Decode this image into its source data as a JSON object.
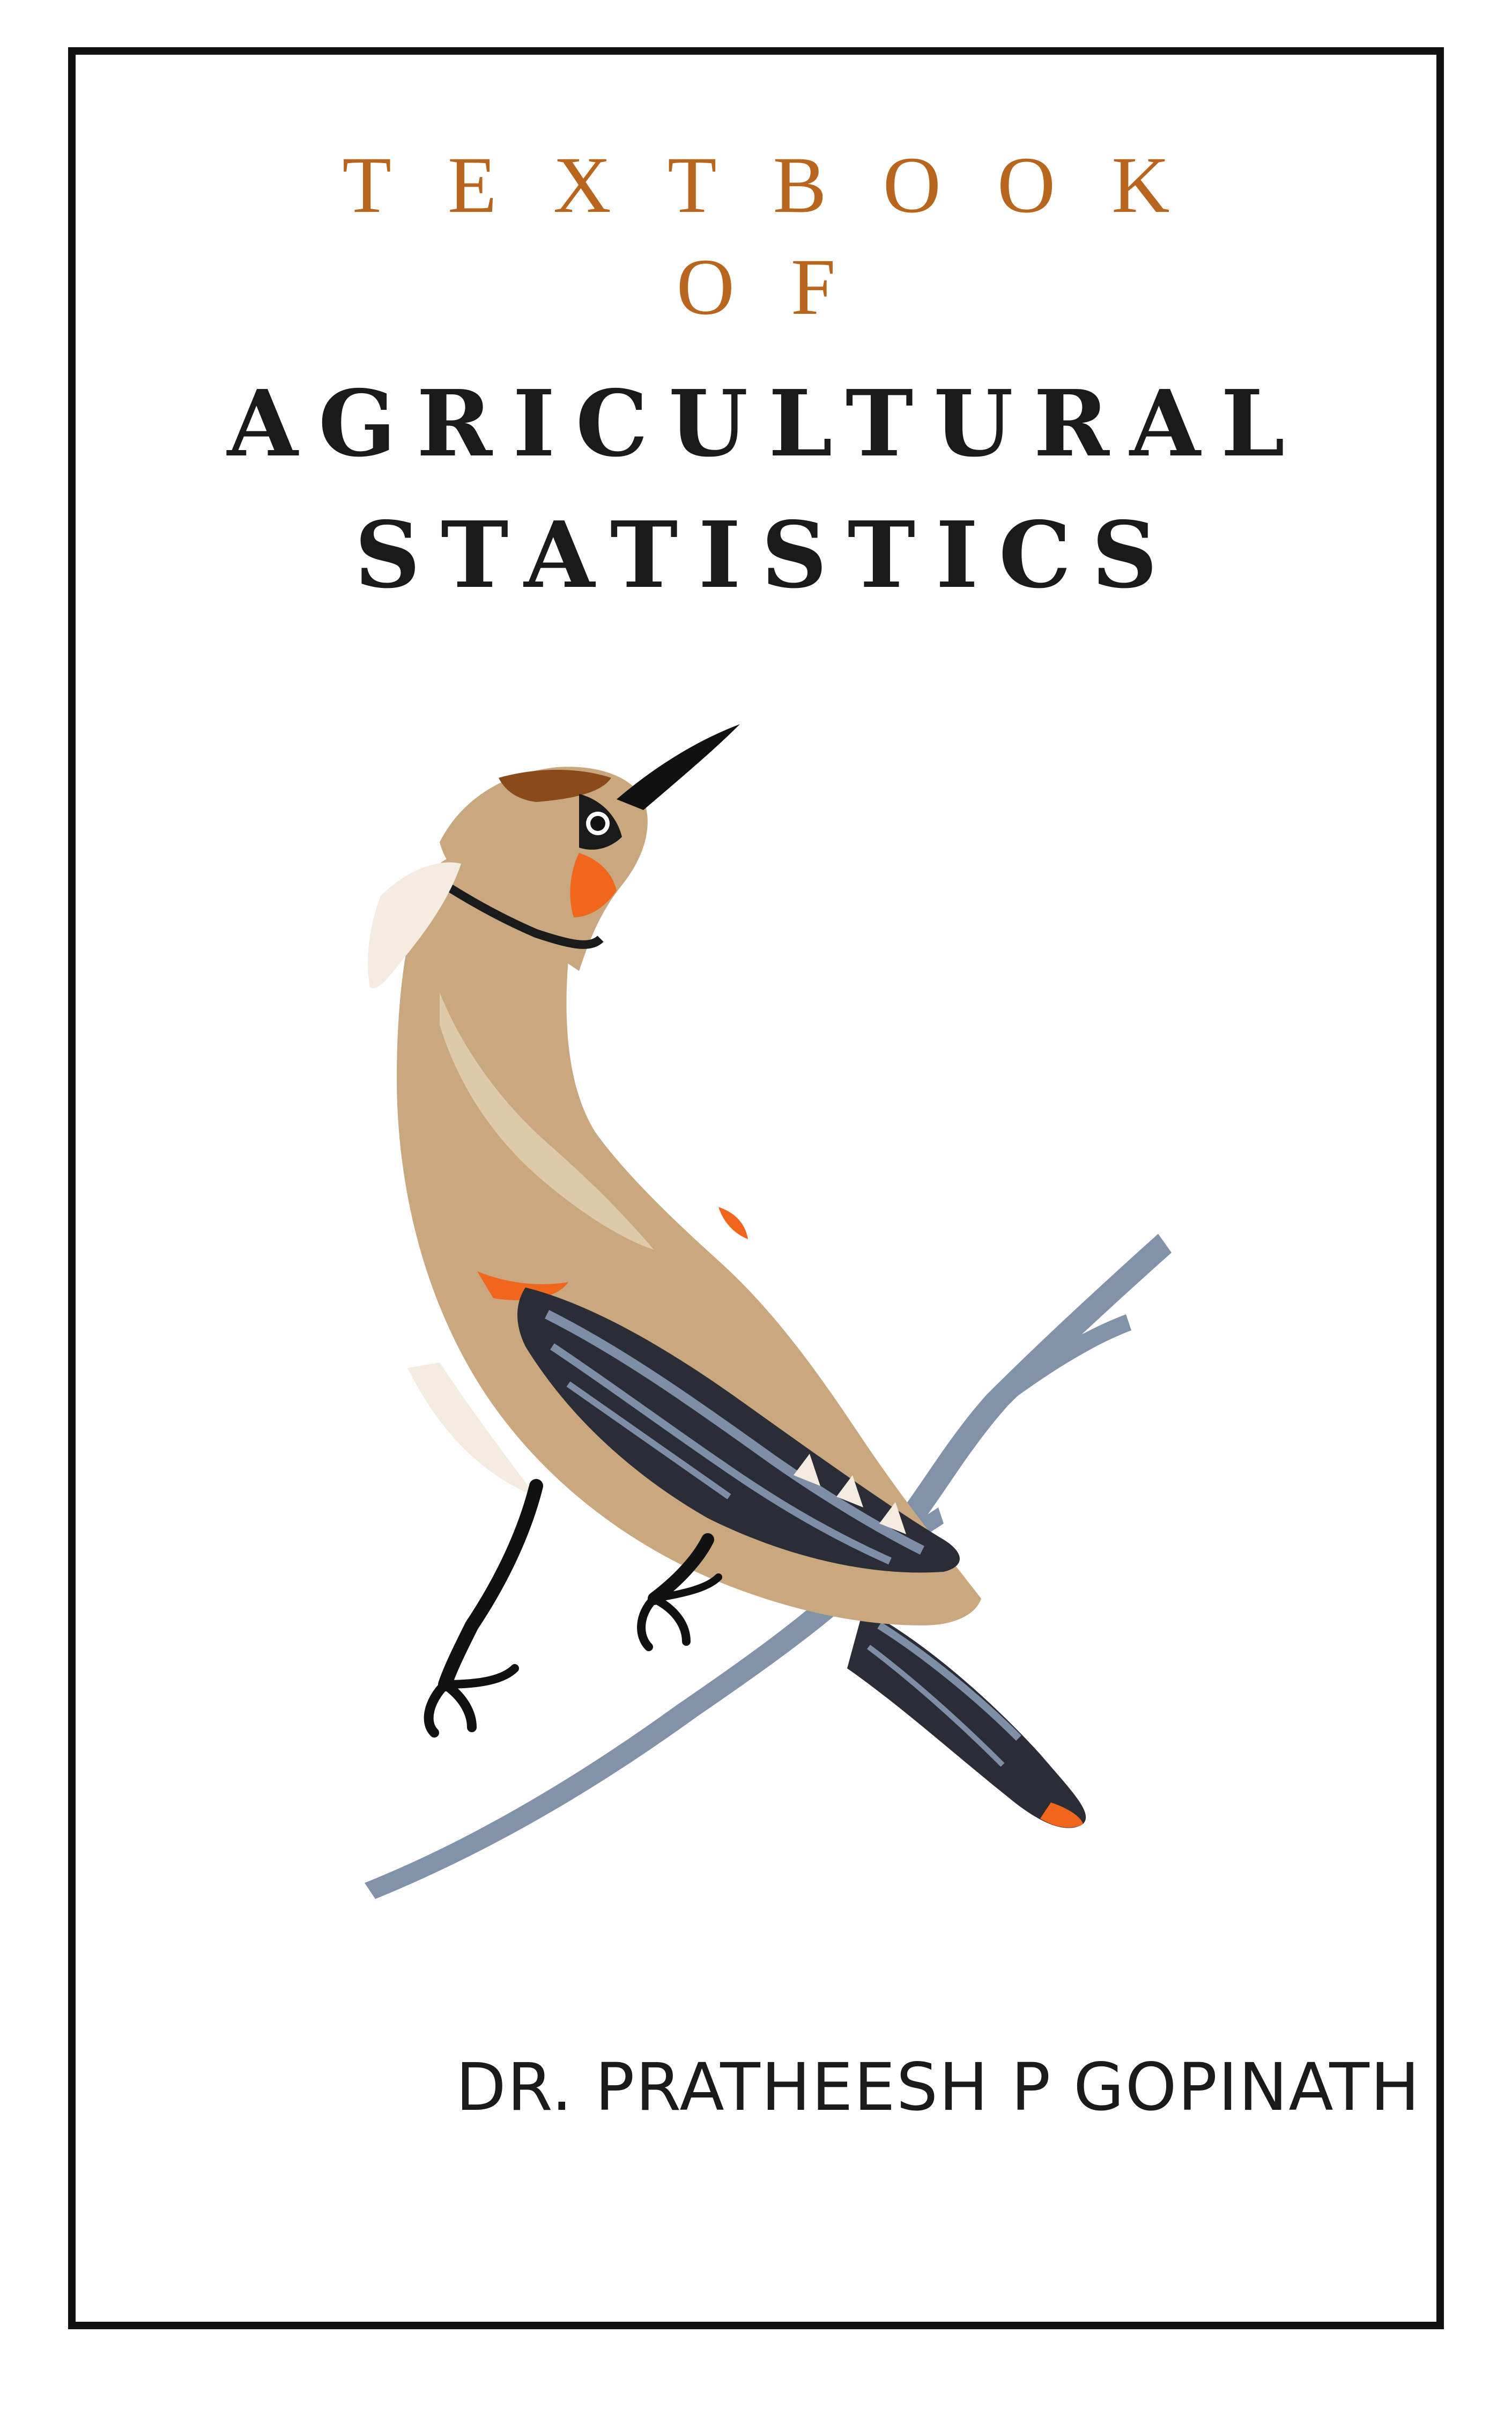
{
  "cover": {
    "title_line_1": "TEXTBOOK",
    "title_line_2": "OF",
    "title_line_3": "AGRICULTURAL",
    "title_line_4": "STATISTICS",
    "author": "DR. PRATHEESH P GOPINATH"
  },
  "colors": {
    "accent_orange": "#b8651e",
    "title_dark": "#1a1a1a",
    "frame": "#111111",
    "bird_tan": "#c9a87f",
    "bird_orange": "#f0661c",
    "branch_blue": "#7d8ea6"
  },
  "illustration": {
    "subject": "bird-on-branch-illustration"
  }
}
